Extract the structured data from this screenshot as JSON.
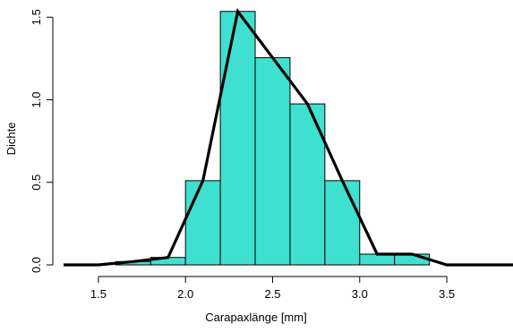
{
  "chart_data": {
    "type": "bar",
    "subtype": "histogram-with-frequency-polygon",
    "xlabel": "Carapaxlänge [mm]",
    "ylabel": "Dichte",
    "xlim": [
      1.3,
      3.88
    ],
    "ylim": [
      0,
      1.55
    ],
    "x_ticks": [
      1.5,
      2.0,
      2.5,
      3.0,
      3.5
    ],
    "x_tick_labels": [
      "1.5",
      "2.0",
      "2.5",
      "3.0",
      "3.5"
    ],
    "y_ticks": [
      0.0,
      0.5,
      1.0,
      1.5
    ],
    "y_tick_labels": [
      "0.0",
      "0.5",
      "1.0",
      "1.5"
    ],
    "bins": [
      {
        "x0": 1.6,
        "x1": 1.8,
        "density": 0.02
      },
      {
        "x0": 1.8,
        "x1": 2.0,
        "density": 0.045
      },
      {
        "x0": 2.0,
        "x1": 2.2,
        "density": 0.51
      },
      {
        "x0": 2.2,
        "x1": 2.4,
        "density": 1.535
      },
      {
        "x0": 2.4,
        "x1": 2.6,
        "density": 1.255
      },
      {
        "x0": 2.6,
        "x1": 2.8,
        "density": 0.975
      },
      {
        "x0": 2.8,
        "x1": 3.0,
        "density": 0.51
      },
      {
        "x0": 3.0,
        "x1": 3.2,
        "density": 0.065
      },
      {
        "x0": 3.2,
        "x1": 3.4,
        "density": 0.065
      }
    ],
    "polygon": {
      "x": [
        1.3,
        1.5,
        1.7,
        1.9,
        2.1,
        2.3,
        2.5,
        2.7,
        2.9,
        3.1,
        3.3,
        3.5,
        3.88
      ],
      "y": [
        0,
        0,
        0.02,
        0.045,
        0.51,
        1.535,
        1.255,
        0.975,
        0.51,
        0.065,
        0.065,
        0,
        0
      ]
    },
    "colors": {
      "bar_fill": "#40E0D0",
      "bar_stroke": "#000000",
      "line": "#000000"
    }
  }
}
